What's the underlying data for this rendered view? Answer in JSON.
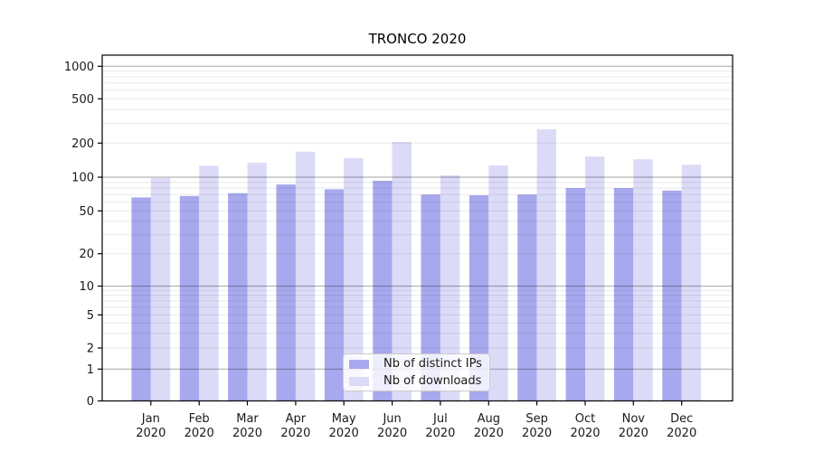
{
  "chart_data": {
    "type": "bar",
    "title": "TRONCO 2020",
    "categories": [
      "Jan",
      "Feb",
      "Mar",
      "Apr",
      "May",
      "Jun",
      "Jul",
      "Aug",
      "Sep",
      "Oct",
      "Nov",
      "Dec"
    ],
    "category_year": "2020",
    "series": [
      {
        "name": "Nb of distinct IPs",
        "color": "#a8a8ee",
        "values": [
          66,
          68,
          72,
          86,
          78,
          93,
          70,
          69,
          70,
          80,
          80,
          76
        ]
      },
      {
        "name": "Nb of downloads",
        "color": "#dbdbf8",
        "values": [
          98,
          126,
          134,
          168,
          147,
          205,
          104,
          127,
          266,
          152,
          144,
          129
        ]
      }
    ],
    "yscale": "symlog",
    "yticks": [
      0,
      1,
      2,
      5,
      10,
      20,
      50,
      100,
      200,
      500,
      1000
    ],
    "ylim": [
      0,
      1260
    ],
    "grid": true,
    "legend_position": "lower center",
    "colors": {
      "major_grid": "#b3b3b3",
      "minor_grid": "#e9e9e9",
      "axis": "#000000",
      "text": "#1a1a1a"
    }
  }
}
